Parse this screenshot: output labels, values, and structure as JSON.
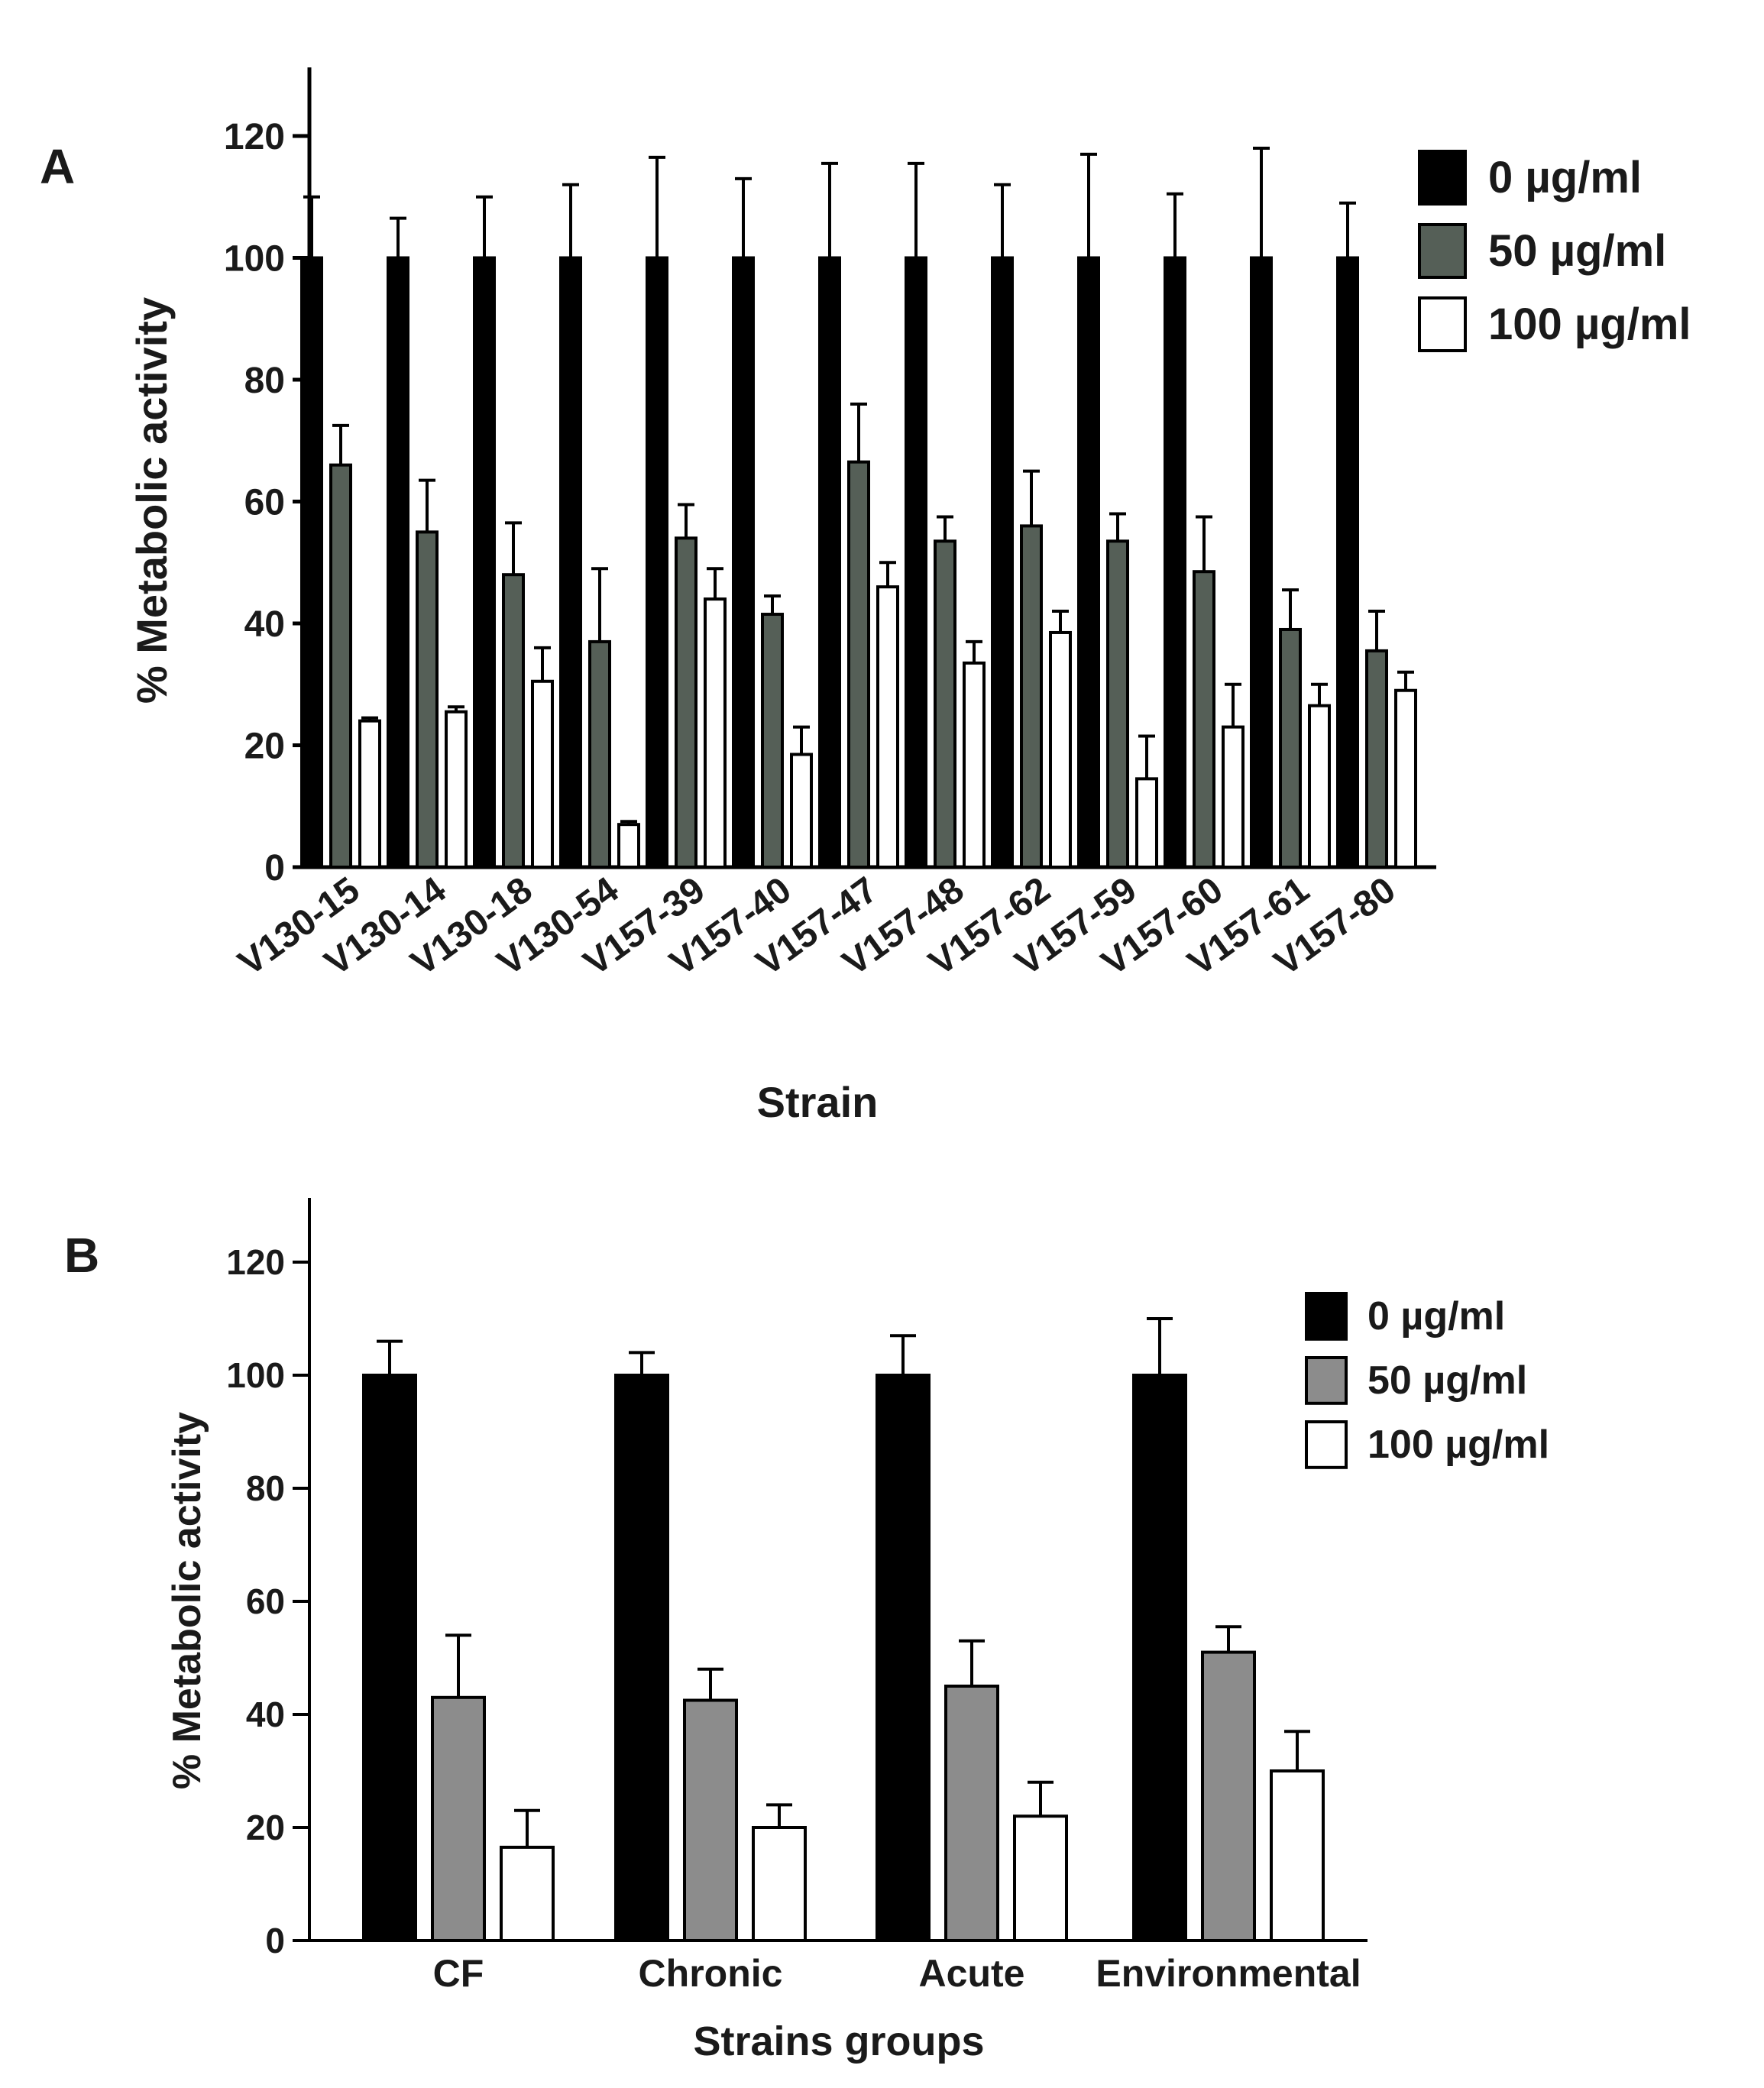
{
  "chart_data": [
    {
      "panel_label": "A",
      "type": "bar",
      "xlabel": "Strain",
      "ylabel": "% Metabolic activity",
      "ylim": [
        0,
        130
      ],
      "yticks": [
        0,
        20,
        40,
        60,
        80,
        100,
        120
      ],
      "grid": false,
      "legend_position": "top-right",
      "categories": [
        "V130-15",
        "V130-14",
        "V130-18",
        "V130-54",
        "V157-39",
        "V157-40",
        "V157-47",
        "V157-48",
        "V157-62",
        "V157-59",
        "V157-60",
        "V157-61",
        "V157-80"
      ],
      "series": [
        {
          "name": "0 µg/ml",
          "color": "#000000",
          "values": [
            100,
            100,
            100,
            100,
            100,
            100,
            100,
            100,
            100,
            100,
            100,
            100,
            100
          ],
          "errors": [
            10,
            6.5,
            10,
            12,
            16.5,
            13,
            15.5,
            15.5,
            12,
            17,
            10.5,
            18,
            9
          ]
        },
        {
          "name": "50 µg/ml",
          "color": "#555f57",
          "values": [
            66,
            55,
            48,
            37,
            54,
            41.5,
            66.5,
            53.5,
            56,
            53.5,
            48.5,
            39,
            35.5
          ],
          "errors": [
            6.5,
            8.5,
            8.5,
            12,
            5.5,
            3,
            9.5,
            4,
            9,
            4.5,
            9,
            6.5,
            6.5
          ]
        },
        {
          "name": "100 µg/ml",
          "color": "#ffffff",
          "values": [
            24,
            25.5,
            30.5,
            7,
            44,
            18.5,
            46,
            33.5,
            38.5,
            14.5,
            23,
            26.5,
            29
          ],
          "errors": [
            0.5,
            0.8,
            5.5,
            0.5,
            5,
            4.5,
            4,
            3.5,
            3.5,
            7,
            7,
            3.5,
            3
          ]
        }
      ]
    },
    {
      "panel_label": "B",
      "type": "bar",
      "xlabel": "Strains groups",
      "ylabel": "% Metabolic activity",
      "ylim": [
        0,
        130
      ],
      "yticks": [
        0,
        20,
        40,
        60,
        80,
        100,
        120
      ],
      "grid": false,
      "legend_position": "top-right",
      "categories": [
        "CF",
        "Chronic",
        "Acute",
        "Environmental"
      ],
      "series": [
        {
          "name": "0 µg/ml",
          "color": "#000000",
          "values": [
            100,
            100,
            100,
            100
          ],
          "errors": [
            6,
            4,
            7,
            10
          ]
        },
        {
          "name": "50 µg/ml",
          "color": "#8c8c8c",
          "values": [
            43,
            42.5,
            45,
            51
          ],
          "errors": [
            11,
            5.5,
            8,
            4.5
          ]
        },
        {
          "name": "100 µg/ml",
          "color": "#ffffff",
          "values": [
            16.5,
            20,
            22,
            30
          ],
          "errors": [
            6.5,
            4,
            6,
            7
          ]
        }
      ]
    }
  ]
}
